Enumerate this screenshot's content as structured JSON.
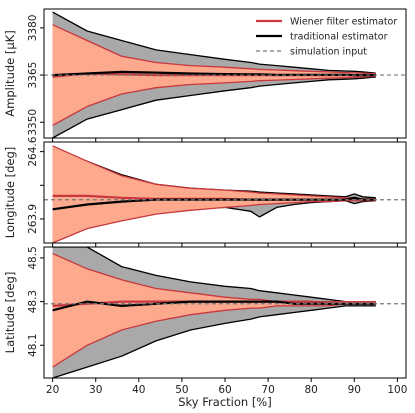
{
  "chart_data": {
    "type": "area",
    "x": [
      20,
      28,
      36,
      44,
      52,
      60,
      66,
      68,
      72,
      76,
      80,
      84,
      88,
      90,
      92,
      95
    ],
    "xlabel": "Sky Fraction [%]",
    "xlim": [
      18,
      102
    ],
    "xticks": [
      20,
      30,
      40,
      50,
      60,
      70,
      80,
      90,
      100
    ],
    "legend": {
      "position": "top-right",
      "entries": [
        "Wiener filter estimator",
        "traditional estimator",
        "simulation input"
      ]
    },
    "colors": {
      "wiener": "#c8383e",
      "wiener_band": "#fca98e",
      "traditional": "#000000",
      "traditional_band": "#a9a9a9",
      "input": "#777777"
    },
    "panels": [
      {
        "ylabel": "Amplitude [μK]",
        "ylim": [
          3345,
          3386
        ],
        "yticks": [
          3350,
          3365,
          3380
        ],
        "truth": 3365,
        "trad_upper": [
          3385,
          3379,
          3376,
          3373,
          3371.5,
          3370,
          3369,
          3368.5,
          3368,
          3367.5,
          3367,
          3366.5,
          3366.3,
          3366.2,
          3366,
          3365.6
        ],
        "trad_lower": [
          3345,
          3351,
          3354,
          3357,
          3358.5,
          3360,
          3361,
          3361.5,
          3362,
          3362.5,
          3363,
          3363.5,
          3363.7,
          3363.8,
          3364,
          3364.4
        ],
        "trad_mean": [
          3365,
          3365.5,
          3366,
          3365.8,
          3365.5,
          3365.3,
          3365.2,
          3365.2,
          3365.1,
          3365.1,
          3365.1,
          3365.1,
          3365.1,
          3365,
          3365,
          3365
        ],
        "wiener_upper": [
          3381,
          3376,
          3371,
          3369,
          3368,
          3367.5,
          3367,
          3366.8,
          3366.6,
          3366.4,
          3366.2,
          3366,
          3365.8,
          3365.7,
          3365.6,
          3365.4
        ],
        "wiener_lower": [
          3349,
          3355,
          3359,
          3361,
          3362,
          3362.5,
          3363,
          3363.2,
          3363.4,
          3363.6,
          3363.8,
          3364,
          3364.2,
          3364.3,
          3364.4,
          3364.6
        ],
        "wiener_mean": [
          3364.5,
          3365.5,
          3365.2,
          3365,
          3365,
          3365,
          3365,
          3365,
          3365,
          3365,
          3365,
          3365,
          3365,
          3365,
          3365,
          3365
        ]
      },
      {
        "ylabel": "Longitude [deg]",
        "ylim": [
          263.65,
          264.7
        ],
        "yticks": [
          263.9,
          264.25,
          264.6
        ],
        "ytick_labels": [
          "263.9",
          "",
          "264.6"
        ],
        "truth": 264.1,
        "trad_upper": [
          264.62,
          264.5,
          264.36,
          264.26,
          264.22,
          264.2,
          264.19,
          264.18,
          264.17,
          264.16,
          264.15,
          264.14,
          264.13,
          264.16,
          264.13,
          264.12
        ],
        "trad_lower": [
          263.7,
          263.85,
          263.93,
          263.98,
          264.0,
          264.02,
          263.98,
          263.92,
          264.02,
          264.05,
          264.07,
          264.08,
          264.09,
          264.06,
          264.08,
          264.09
        ],
        "trad_mean": [
          264.0,
          264.05,
          264.08,
          264.1,
          264.1,
          264.1,
          264.1,
          264.1,
          264.1,
          264.1,
          264.1,
          264.1,
          264.1,
          264.12,
          264.1,
          264.1
        ],
        "wiener_upper": [
          264.66,
          264.5,
          264.35,
          264.26,
          264.22,
          264.2,
          264.18,
          264.17,
          264.16,
          264.15,
          264.14,
          264.13,
          264.12,
          264.12,
          264.11,
          264.11
        ],
        "wiener_lower": [
          263.65,
          263.8,
          263.88,
          263.95,
          263.99,
          264.02,
          264.04,
          264.05,
          264.06,
          264.07,
          264.08,
          264.08,
          264.09,
          264.09,
          264.09,
          264.09
        ],
        "wiener_mean": [
          264.14,
          264.14,
          264.12,
          264.11,
          264.11,
          264.11,
          264.1,
          264.1,
          264.1,
          264.1,
          264.1,
          264.1,
          264.1,
          264.1,
          264.1,
          264.1
        ]
      },
      {
        "ylabel": "Latitude [deg]",
        "ylim": [
          47.95,
          48.55
        ],
        "yticks": [
          48.1,
          48.3,
          48.5
        ],
        "truth": 48.29,
        "trad_upper": [
          48.55,
          48.55,
          48.46,
          48.42,
          48.39,
          48.37,
          48.36,
          48.35,
          48.34,
          48.33,
          48.32,
          48.31,
          48.3,
          48.3,
          48.3,
          48.3
        ],
        "trad_lower": [
          47.95,
          48.0,
          48.05,
          48.12,
          48.17,
          48.2,
          48.22,
          48.23,
          48.24,
          48.25,
          48.26,
          48.27,
          48.28,
          48.28,
          48.28,
          48.28
        ],
        "trad_mean": [
          48.26,
          48.3,
          48.28,
          48.29,
          48.3,
          48.3,
          48.3,
          48.3,
          48.3,
          48.29,
          48.29,
          48.29,
          48.29,
          48.29,
          48.29,
          48.29
        ],
        "wiener_upper": [
          48.52,
          48.45,
          48.4,
          48.36,
          48.34,
          48.32,
          48.31,
          48.31,
          48.3,
          48.3,
          48.3,
          48.3,
          48.3,
          48.3,
          48.3,
          48.3
        ],
        "wiener_lower": [
          48.0,
          48.1,
          48.17,
          48.21,
          48.24,
          48.26,
          48.27,
          48.27,
          48.28,
          48.28,
          48.28,
          48.28,
          48.29,
          48.29,
          48.29,
          48.29
        ],
        "wiener_mean": [
          48.28,
          48.29,
          48.3,
          48.3,
          48.3,
          48.3,
          48.3,
          48.3,
          48.3,
          48.3,
          48.3,
          48.29,
          48.29,
          48.29,
          48.29,
          48.29
        ]
      }
    ]
  }
}
